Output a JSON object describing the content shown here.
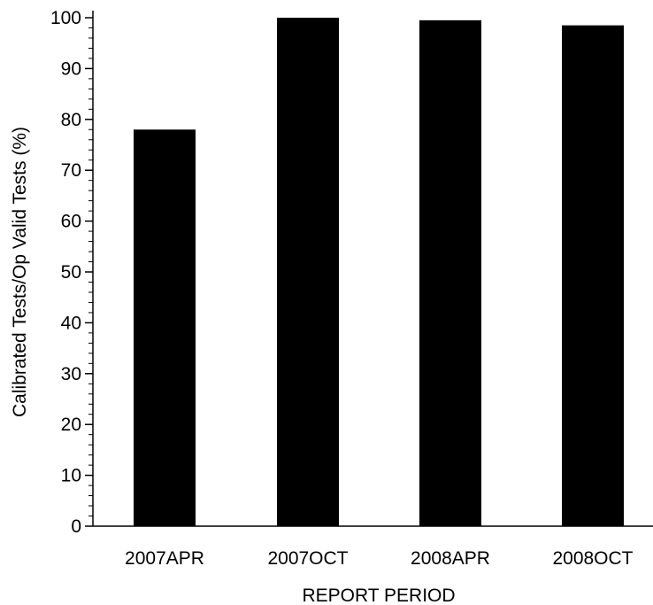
{
  "chart_data": {
    "type": "bar",
    "title": "",
    "xlabel": "REPORT PERIOD",
    "ylabel": "Calibrated Tests/Op Valid Tests (%)",
    "categories": [
      "2007APR",
      "2007OCT",
      "2008APR",
      "2008OCT"
    ],
    "values": [
      78,
      100,
      99.5,
      98.5
    ],
    "ylim": [
      0,
      100
    ],
    "yticks": [
      "0",
      "10",
      "20",
      "30",
      "40",
      "50",
      "60",
      "70",
      "80",
      "90",
      "100"
    ],
    "grid": false,
    "legend": "none",
    "bar_color": "#000000"
  }
}
